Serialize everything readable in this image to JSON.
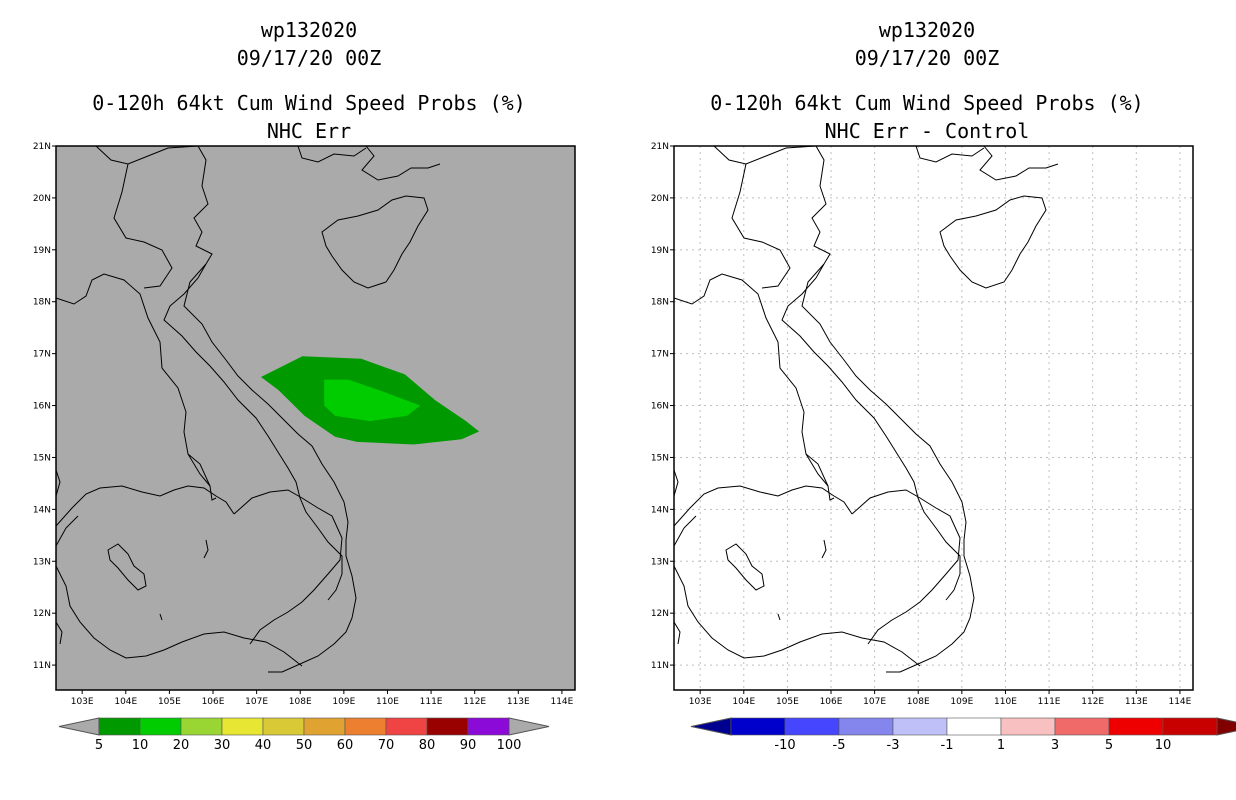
{
  "panels": [
    {
      "title_line1": "wp132020",
      "title_line2": "09/17/20 00Z",
      "title_line3": "0-120h 64kt Cum Wind Speed Probs (%)",
      "title_line4": "NHC Err",
      "background": "#aaaaaa",
      "gridlines": false,
      "colorbar": {
        "colors": [
          "#009900",
          "#00cc00",
          "#99d633",
          "#e6e633",
          "#d9c936",
          "#e0a332",
          "#ec7f30",
          "#f04343",
          "#990000",
          "#8b0ad8"
        ],
        "end_colors": [
          "#aaaaaa",
          "#aaaaaa"
        ],
        "labels": [
          "5",
          "10",
          "20",
          "30",
          "40",
          "50",
          "60",
          "70",
          "80",
          "90",
          "100"
        ]
      }
    },
    {
      "title_line1": "wp132020",
      "title_line2": "09/17/20 00Z",
      "title_line3": "0-120h 64kt Cum Wind Speed Probs (%)",
      "title_line4": "NHC Err - Control",
      "background": "#ffffff",
      "gridlines": true,
      "colorbar": {
        "colors": [
          "#0000cc",
          "#4646ff",
          "#8585ee",
          "#c0c0f8",
          "#ffffff",
          "#f8c0c0",
          "#f06a6a",
          "#ee0000",
          "#c80000"
        ],
        "end_colors": [
          "#000090",
          "#800000"
        ],
        "labels": [
          "-10",
          "-5",
          "-3",
          "-1",
          "1",
          "3",
          "5",
          "10"
        ]
      }
    }
  ],
  "axes": {
    "lat_labels": [
      "11N",
      "12N",
      "13N",
      "14N",
      "15N",
      "16N",
      "17N",
      "18N",
      "19N",
      "20N",
      "21N"
    ],
    "lon_labels": [
      "103E",
      "104E",
      "105E",
      "106E",
      "107E",
      "108E",
      "109E",
      "110E",
      "111E",
      "112E",
      "113E",
      "114E"
    ]
  },
  "probability_field": [
    {
      "level": "5-10",
      "color": "#009900"
    },
    {
      "level": "10-20",
      "color": "#00cc00"
    }
  ]
}
